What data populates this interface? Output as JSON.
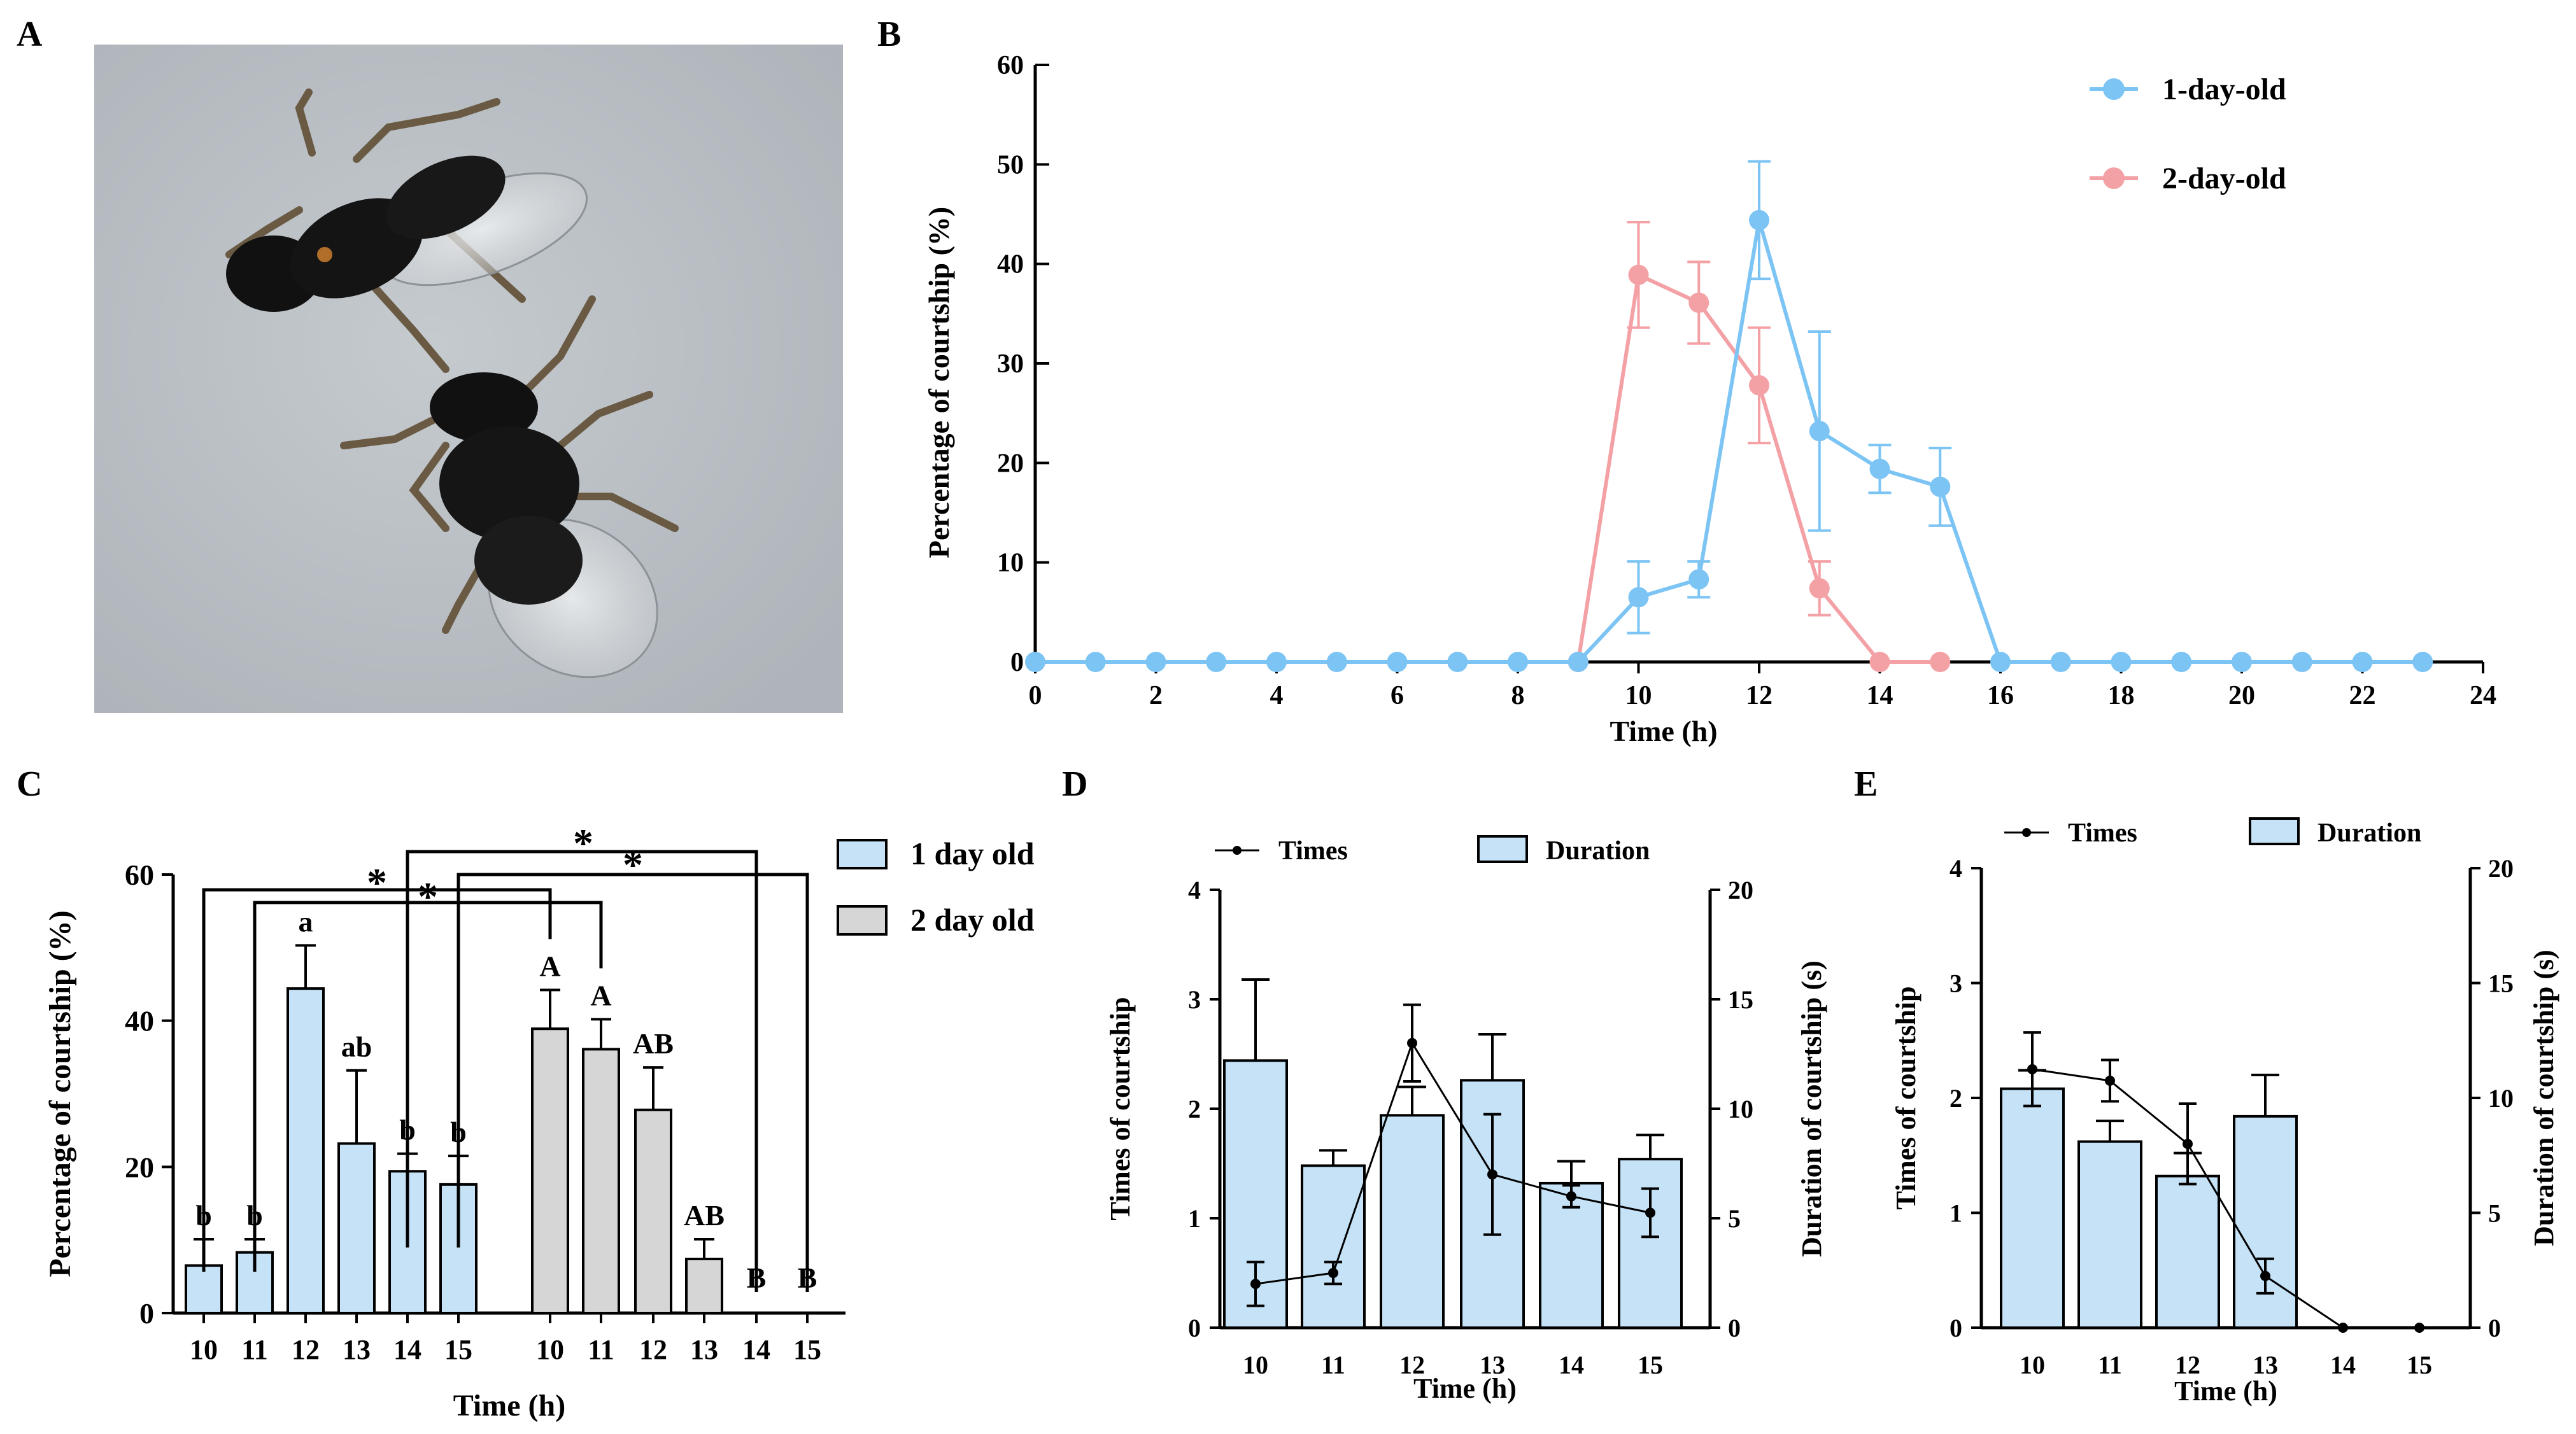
{
  "figure": {
    "panel_labels": [
      "A",
      "B",
      "C",
      "D",
      "E"
    ],
    "photo": {
      "subject": "two small dark wasps (parasitoids) during courtship",
      "icon": "wasp-photo"
    }
  },
  "colors": {
    "blue": "#7cc4f4",
    "pink": "#f4a1a6",
    "bar_blue": "#c5e2f7",
    "bar_gray": "#d6d6d6",
    "photo_bg": "#b8bec3"
  },
  "chart_data": [
    {
      "id": "B",
      "type": "line",
      "title": "",
      "xlabel": "Time (h)",
      "ylabel": "Percentage of courtship (%)",
      "xlim": [
        0,
        24
      ],
      "ylim": [
        0,
        60
      ],
      "xticks": [
        "0",
        "2",
        "4",
        "6",
        "8",
        "10",
        "12",
        "14",
        "16",
        "18",
        "20",
        "22",
        "24"
      ],
      "yticks": [
        "0",
        "10",
        "20",
        "30",
        "40",
        "50",
        "60"
      ],
      "legend_position": "top-right",
      "series": [
        {
          "name": "1-day-old",
          "color": "#7cc4f4",
          "x": [
            0,
            1,
            2,
            3,
            4,
            5,
            6,
            7,
            8,
            9,
            10,
            11,
            12,
            13,
            14,
            15,
            16,
            17,
            18,
            19,
            20,
            21,
            22,
            23
          ],
          "y": [
            0,
            0,
            0,
            0,
            0,
            0,
            0,
            0,
            0,
            0,
            6.5,
            8.3,
            44.4,
            23.2,
            19.4,
            17.6,
            0,
            0,
            0,
            0,
            0,
            0,
            0,
            0
          ],
          "err": [
            0,
            0,
            0,
            0,
            0,
            0,
            0,
            0,
            0,
            0,
            3.6,
            1.8,
            5.9,
            10.0,
            2.4,
            3.9,
            0,
            0,
            0,
            0,
            0,
            0,
            0,
            0
          ]
        },
        {
          "name": "2-day-old",
          "color": "#f4a1a6",
          "x": [
            9,
            10,
            11,
            12,
            13,
            14,
            15
          ],
          "y": [
            0,
            38.9,
            36.1,
            27.8,
            7.4,
            0,
            0
          ],
          "err": [
            0,
            5.3,
            4.1,
            5.8,
            2.7,
            0,
            0
          ]
        }
      ]
    },
    {
      "id": "C",
      "type": "bar",
      "xlabel": "Time (h)",
      "ylabel": "Percentage of courtship (%)",
      "ylim": [
        0,
        60
      ],
      "yticks": [
        "0",
        "20",
        "40",
        "60"
      ],
      "legend_position": "top-right",
      "series": [
        {
          "name": "1 day old",
          "color": "#c5e2f7",
          "categories": [
            "10",
            "11",
            "12",
            "13",
            "14",
            "15"
          ],
          "values": [
            6.5,
            8.3,
            44.4,
            23.2,
            19.4,
            17.6
          ],
          "err": [
            3.6,
            1.8,
            5.9,
            10.0,
            2.4,
            3.9
          ],
          "letters": [
            "b",
            "b",
            "a",
            "ab",
            "b",
            "b"
          ]
        },
        {
          "name": "2 day old",
          "color": "#d6d6d6",
          "categories": [
            "10",
            "11",
            "12",
            "13",
            "14",
            "15"
          ],
          "values": [
            38.9,
            36.1,
            27.8,
            7.4,
            0,
            0
          ],
          "err": [
            5.3,
            4.1,
            5.8,
            2.7,
            0,
            0
          ],
          "letters": [
            "A",
            "A",
            "AB",
            "AB",
            "B",
            "B"
          ]
        }
      ],
      "significance_brackets": [
        {
          "from": "1 day old 10",
          "to": "2 day old 10",
          "mark": "*"
        },
        {
          "from": "1 day old 11",
          "to": "2 day old 11",
          "mark": "*"
        },
        {
          "from": "1 day old 14",
          "to": "2 day old 14",
          "mark": "*"
        },
        {
          "from": "1 day old 15",
          "to": "2 day old 15",
          "mark": "*"
        }
      ]
    },
    {
      "id": "D",
      "type": "bar",
      "xlabel": "Time (h)",
      "ylabel": "Times of courtship",
      "ylabel_right": "Duration of courtship (s)",
      "ylim": [
        0,
        4
      ],
      "ylim_right": [
        0,
        20
      ],
      "yticks": [
        "0",
        "1",
        "2",
        "3",
        "4"
      ],
      "yticks_right": [
        "0",
        "5",
        "10",
        "15",
        "20"
      ],
      "categories": [
        "10",
        "11",
        "12",
        "13",
        "14",
        "15"
      ],
      "legend": [
        "Times",
        "Duration"
      ],
      "duration": [
        12.2,
        7.4,
        9.7,
        11.3,
        6.6,
        7.7
      ],
      "duration_err": [
        3.7,
        0.7,
        1.3,
        2.1,
        1.0,
        1.1
      ],
      "times": [
        0.4,
        0.5,
        2.6,
        1.4,
        1.2,
        1.05
      ],
      "times_err": [
        0.2,
        0.1,
        0.35,
        0.55,
        0.1,
        0.22
      ]
    },
    {
      "id": "E",
      "type": "bar",
      "xlabel": "Time (h)",
      "ylabel": "Times of courtship",
      "ylabel_right": "Duration of courtship (s)",
      "ylim": [
        0,
        4
      ],
      "ylim_right": [
        0,
        20
      ],
      "yticks": [
        "0",
        "1",
        "2",
        "3",
        "4"
      ],
      "yticks_right": [
        "0",
        "5",
        "10",
        "15",
        "20"
      ],
      "categories": [
        "10",
        "11",
        "12",
        "13",
        "14",
        "15"
      ],
      "legend": [
        "Times",
        "Duration"
      ],
      "duration": [
        10.4,
        8.1,
        6.6,
        9.2,
        0,
        0
      ],
      "duration_err": [
        0.8,
        0.9,
        1.0,
        1.8,
        0,
        0
      ],
      "times": [
        2.25,
        2.15,
        1.6,
        0.45,
        0,
        0
      ],
      "times_err": [
        0.32,
        0.18,
        0.35,
        0.15,
        0,
        0
      ]
    }
  ]
}
